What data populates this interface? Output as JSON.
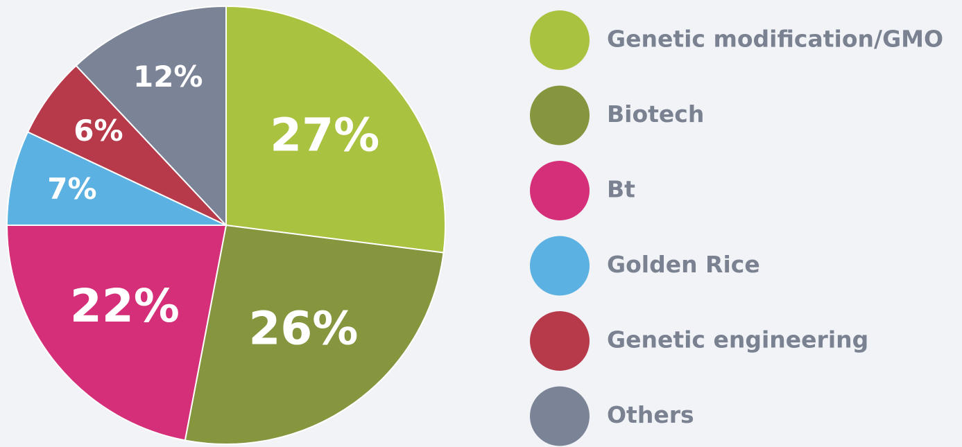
{
  "chart_data": {
    "type": "pie",
    "categories": [
      "Genetic modification/GMO",
      "Biotech",
      "Bt",
      "Golden Rice",
      "Genetic engineering",
      "Others"
    ],
    "values": [
      27,
      26,
      22,
      7,
      6,
      12
    ],
    "value_labels": [
      "27%",
      "26%",
      "22%",
      "7%",
      "6%",
      "12%"
    ],
    "colors": [
      "#a9c23f",
      "#85963e",
      "#d42f78",
      "#5bb2e2",
      "#b73a4b",
      "#7b8497"
    ],
    "legend": "right"
  }
}
